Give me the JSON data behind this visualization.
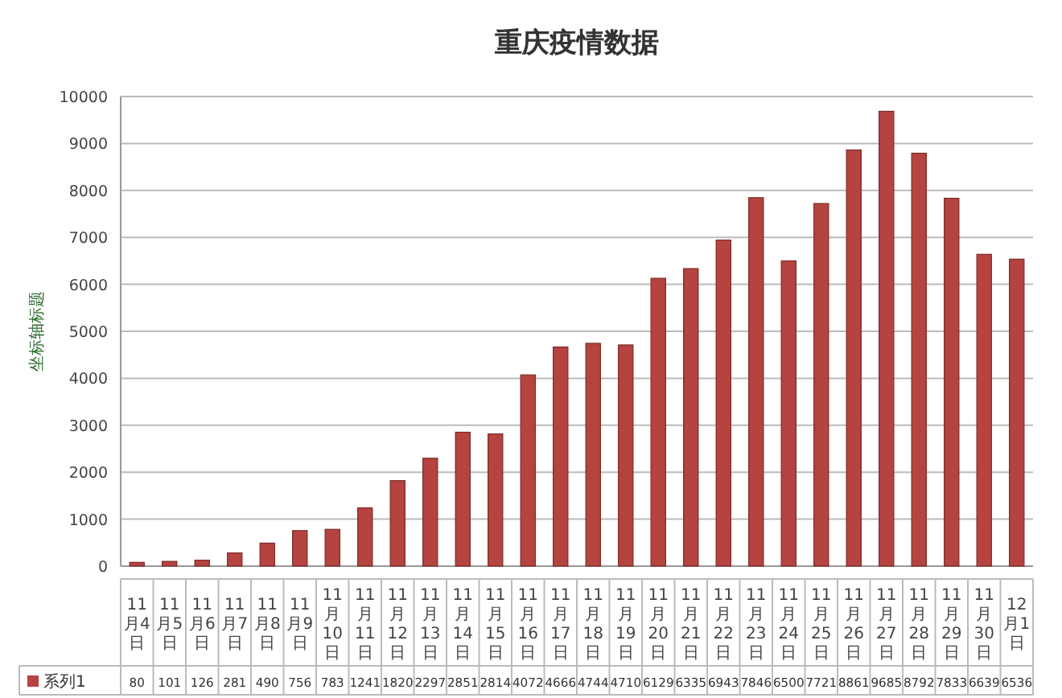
{
  "chart_data": {
    "type": "bar",
    "title": "重庆疫情数据",
    "ylabel": "坐标轴标题",
    "categories": [
      "11月4日",
      "11月5日",
      "11月6日",
      "11月7日",
      "11月8日",
      "11月9日",
      "11月10日",
      "11月11日",
      "11月12日",
      "11月13日",
      "11月14日",
      "11月15日",
      "11月16日",
      "11月17日",
      "11月18日",
      "11月19日",
      "11月20日",
      "11月21日",
      "11月22日",
      "11月23日",
      "11月24日",
      "11月25日",
      "11月26日",
      "11月27日",
      "11月28日",
      "11月29日",
      "11月30日",
      "12月1日"
    ],
    "series": [
      {
        "name": "系列1",
        "color": "#b5433f",
        "values": [
          80,
          101,
          126,
          281,
          490,
          756,
          783,
          1241,
          1820,
          2297,
          2851,
          2814,
          4072,
          4666,
          4744,
          4710,
          6129,
          6335,
          6943,
          7846,
          6500,
          7721,
          8861,
          9685,
          8792,
          7833,
          6639,
          6536
        ]
      }
    ],
    "ylim": [
      0,
      10000
    ],
    "yticks": [
      0,
      1000,
      2000,
      3000,
      4000,
      5000,
      6000,
      7000,
      8000,
      9000,
      10000
    ],
    "grid": "y",
    "legend": "bottom",
    "data_labels": true
  }
}
